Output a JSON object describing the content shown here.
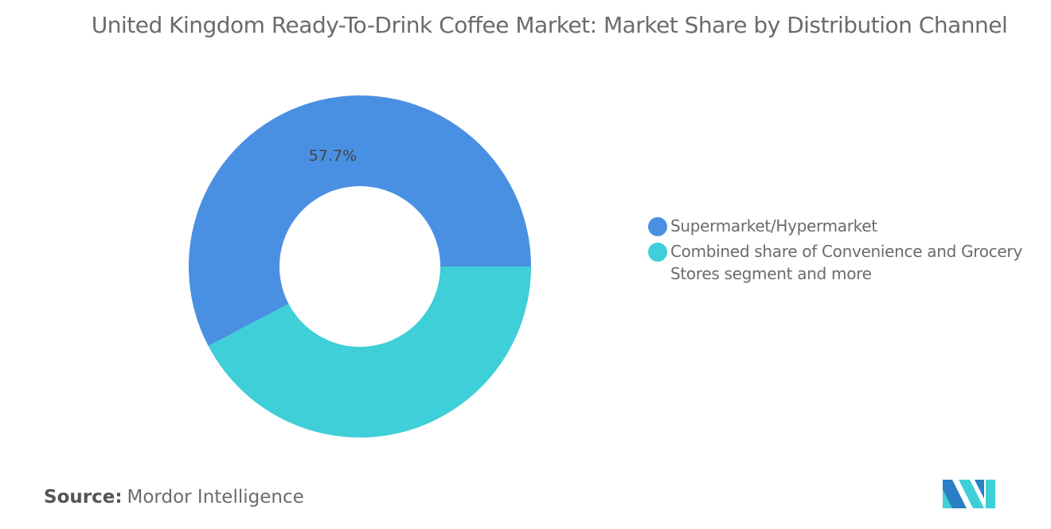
{
  "chart_data": {
    "type": "pie",
    "donut": true,
    "title": "United Kingdom Ready-To-Drink Coffee Market: Market Share by Distribution Channel",
    "categories": [
      "Supermarket/Hypermarket",
      "Combined share of Convenience and Grocery Stores segment and more"
    ],
    "values": [
      57.7,
      42.3
    ],
    "data_labels": [
      "57.7%",
      ""
    ],
    "colors": [
      "#4a90e2",
      "#3ecfd8"
    ],
    "legend": "right"
  },
  "source": {
    "label": "Source:",
    "value": "Mordor Intelligence"
  },
  "logo": {
    "name": "Mordor Intelligence logo",
    "colors": [
      "#2b7fc4",
      "#3ecfd8"
    ]
  }
}
